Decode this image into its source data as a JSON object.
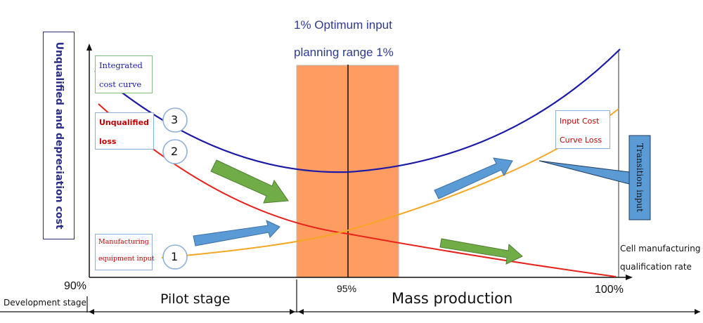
{
  "header": {
    "line1": "1% Optimum input",
    "line2": "planning range 1%"
  },
  "y_axis": {
    "label": "Unqualified and depreciation cost"
  },
  "x_axis": {
    "label_line1": "Cell manufacturing",
    "label_line2": "qualification rate",
    "ticks": [
      "90%",
      "95%",
      "100%"
    ]
  },
  "stages": {
    "development": "Development stage",
    "pilot": "Pilot stage",
    "mass": "Mass production"
  },
  "curves": [
    {
      "id": "integrated",
      "label": "Integrated\ncost curve",
      "number": "3",
      "color": "#1a1aa6"
    },
    {
      "id": "unqualified",
      "label": "Unqualified\nloss",
      "number": "2",
      "color": "#e8211b"
    },
    {
      "id": "equipment",
      "label": "Manufacturing\nequipment input",
      "number": "1",
      "color": "#f5a623"
    }
  ],
  "callouts": {
    "input_cost": "Input Cost\nCurve Loss",
    "transition": "Transition input"
  },
  "colors": {
    "optimum_band": "#ff9c62",
    "blue_arrow": "#5b9bd5",
    "green_arrow": "#70ad47",
    "callout_text": "#c00000"
  }
}
